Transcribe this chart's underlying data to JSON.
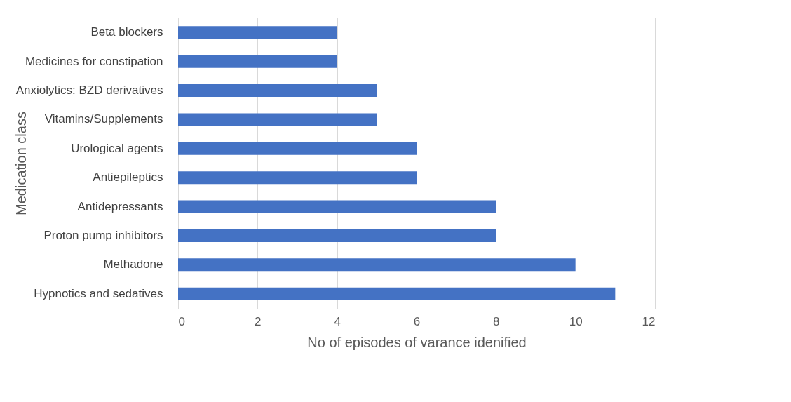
{
  "chart_data": {
    "type": "bar",
    "orientation": "horizontal",
    "xlabel": "No of episodes of varance idenified",
    "ylabel": "Medication class",
    "categories": [
      "Beta blockers",
      "Medicines for constipation",
      "Anxiolytics: BZD derivatives",
      "Vitamins/Supplements",
      "Urological agents",
      "Antiepileptics",
      "Antidepressants",
      "Proton pump inhibitors",
      "Methadone",
      "Hypnotics and sedatives"
    ],
    "values": [
      4,
      4,
      5,
      5,
      6,
      6,
      8,
      8,
      10,
      11
    ],
    "color": "#4472c4",
    "xlim": [
      0,
      12
    ],
    "xticks": [
      0,
      2,
      4,
      6,
      8,
      10,
      12
    ],
    "grid": "x"
  }
}
